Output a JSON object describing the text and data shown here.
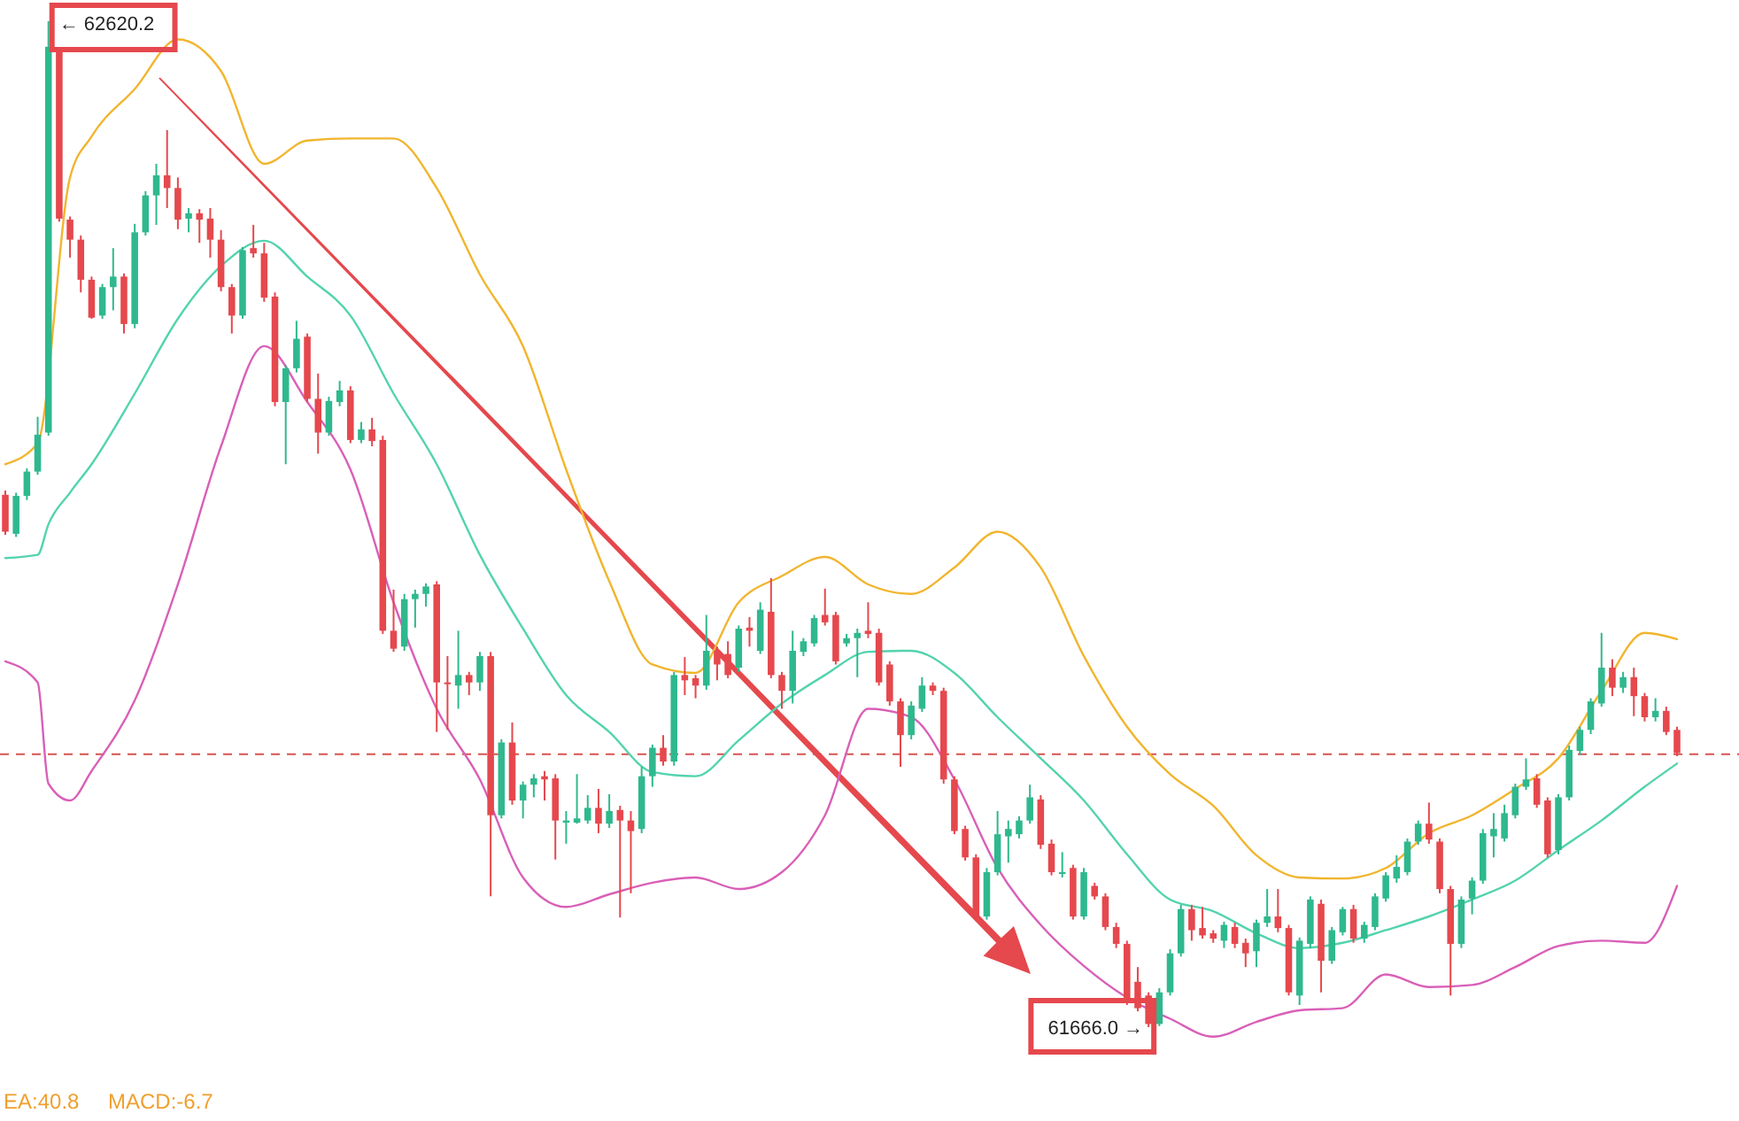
{
  "chart_data": {
    "type": "candlestick",
    "categories": [
      null,
      null,
      null,
      null,
      null,
      null,
      null,
      null,
      null,
      null,
      null,
      null,
      null,
      null,
      null,
      null,
      null,
      null,
      null,
      null,
      null,
      null,
      null,
      null,
      null,
      null,
      null,
      null,
      null,
      null,
      null,
      null,
      null,
      null,
      null,
      null,
      null,
      null,
      null,
      null,
      null,
      null,
      null,
      null,
      null,
      null,
      null,
      null,
      null,
      null,
      null,
      null,
      null,
      null,
      null,
      null,
      null,
      null,
      null,
      null,
      null,
      null,
      null,
      null,
      null,
      null,
      null,
      null,
      null,
      null,
      null,
      null,
      null,
      null,
      null,
      null,
      null,
      null,
      null,
      null,
      null,
      null,
      null,
      null,
      null,
      null,
      null,
      null,
      null,
      null,
      null,
      null,
      null,
      null,
      null,
      null,
      null,
      null,
      null,
      null,
      null,
      null,
      null,
      null,
      null,
      null,
      null,
      null,
      null,
      null,
      null,
      null,
      null,
      null,
      null,
      null,
      null,
      null,
      null,
      null,
      null,
      null,
      null,
      null,
      null,
      null,
      null,
      null,
      null,
      null,
      null,
      null,
      null,
      null,
      null,
      null,
      null,
      null,
      null,
      null,
      null,
      null,
      null,
      null,
      null,
      null,
      null,
      null,
      null,
      null,
      null,
      null,
      null,
      null,
      null,
      null
    ],
    "ohlc": [
      [
        62171,
        62175,
        62133,
        62136
      ],
      [
        62134,
        62173,
        62131,
        62170
      ],
      [
        62170,
        62196,
        62166,
        62193
      ],
      [
        62193,
        62245,
        62190,
        62228
      ],
      [
        62230,
        62620.2,
        62227,
        62596
      ],
      [
        62591,
        62595,
        62430,
        62433
      ],
      [
        62432,
        62435,
        62396,
        62413
      ],
      [
        62413,
        62417,
        62363,
        62375
      ],
      [
        62375,
        62378,
        62338,
        62339
      ],
      [
        62341,
        62371,
        62338,
        62368
      ],
      [
        62368,
        62405,
        62346,
        62378
      ],
      [
        62378,
        62381,
        62324,
        62333
      ],
      [
        62333,
        62428,
        62329,
        62420
      ],
      [
        62420,
        62459,
        62417,
        62455
      ],
      [
        62455,
        62485,
        62427,
        62474
      ],
      [
        62474,
        62517,
        62443,
        62462
      ],
      [
        62462,
        62472,
        62423,
        62432
      ],
      [
        62433,
        62443,
        62420,
        62438
      ],
      [
        62438,
        62442,
        62410,
        62432
      ],
      [
        62433,
        62443,
        62396,
        62413
      ],
      [
        62413,
        62422,
        62364,
        62368
      ],
      [
        62368,
        62371,
        62324,
        62341
      ],
      [
        62341,
        62406,
        62338,
        62403
      ],
      [
        62405,
        62427,
        62396,
        62400
      ],
      [
        62400,
        62410,
        62354,
        62358
      ],
      [
        62359,
        62363,
        62255,
        62259
      ],
      [
        62259,
        62294,
        62200,
        62291
      ],
      [
        62291,
        62336,
        62287,
        62319
      ],
      [
        62321,
        62324,
        62259,
        62262
      ],
      [
        62262,
        62286,
        62210,
        62230
      ],
      [
        62230,
        62264,
        62227,
        62260
      ],
      [
        62259,
        62279,
        62255,
        62270
      ],
      [
        62270,
        62274,
        62220,
        62223
      ],
      [
        62223,
        62240,
        62220,
        62233
      ],
      [
        62233,
        62244,
        62217,
        62222
      ],
      [
        62223,
        62227,
        62039,
        62042
      ],
      [
        62042,
        62081,
        62022,
        62025
      ],
      [
        62027,
        62077,
        62023,
        62072
      ],
      [
        62072,
        62081,
        62045,
        62077
      ],
      [
        62077,
        62087,
        62065,
        62084
      ],
      [
        62086,
        62089,
        61946,
        61993
      ],
      [
        61993,
        62018,
        61948,
        61992
      ],
      [
        61990,
        62042,
        61968,
        62000
      ],
      [
        62000,
        62003,
        61981,
        61993
      ],
      [
        61993,
        62022,
        61985,
        62018
      ],
      [
        62018,
        62022,
        61790,
        61867
      ],
      [
        61867,
        61939,
        61864,
        61936
      ],
      [
        61936,
        61955,
        61877,
        61881
      ],
      [
        61881,
        61899,
        61864,
        61896
      ],
      [
        61896,
        61906,
        61884,
        61902
      ],
      [
        61904,
        61909,
        61881,
        61901
      ],
      [
        61902,
        61906,
        61825,
        61862
      ],
      [
        61860,
        61871,
        61840,
        61862
      ],
      [
        61860,
        61906,
        61859,
        61864
      ],
      [
        61862,
        61886,
        61859,
        61874
      ],
      [
        61874,
        61892,
        61850,
        61859
      ],
      [
        61859,
        61887,
        61855,
        61871
      ],
      [
        61872,
        61876,
        61770,
        61862
      ],
      [
        61862,
        61871,
        61793,
        61852
      ],
      [
        61854,
        61913,
        61850,
        61904
      ],
      [
        61904,
        61934,
        61894,
        61931
      ],
      [
        61931,
        61943,
        61914,
        61918
      ],
      [
        61918,
        62003,
        61914,
        62000
      ],
      [
        62000,
        62017,
        61981,
        61995
      ],
      [
        61997,
        62000,
        61978,
        61990
      ],
      [
        61990,
        62057,
        61986,
        62023
      ],
      [
        62023,
        62027,
        61995,
        62010
      ],
      [
        62020,
        62032,
        61997,
        62000
      ],
      [
        62007,
        62047,
        62003,
        62044
      ],
      [
        62045,
        62055,
        62027,
        62042
      ],
      [
        62023,
        62069,
        62020,
        62062
      ],
      [
        62060,
        62092,
        61997,
        62000
      ],
      [
        62000,
        62003,
        61968,
        61985
      ],
      [
        61985,
        62042,
        61973,
        62023
      ],
      [
        62022,
        62035,
        62018,
        62032
      ],
      [
        62030,
        62057,
        62027,
        62054
      ],
      [
        62057,
        62082,
        62047,
        62050
      ],
      [
        62057,
        62060,
        62010,
        62013
      ],
      [
        62030,
        62039,
        62027,
        62035
      ],
      [
        62035,
        62044,
        61998,
        62040
      ],
      [
        62042,
        62069,
        62035,
        62039
      ],
      [
        62040,
        62044,
        61990,
        61993
      ],
      [
        62010,
        62013,
        61971,
        61975
      ],
      [
        61975,
        61978,
        61913,
        61943
      ],
      [
        61943,
        61975,
        61939,
        61971
      ],
      [
        61968,
        61998,
        61965,
        61990
      ],
      [
        61990,
        61993,
        61981,
        61985
      ],
      [
        61985,
        61988,
        61897,
        61901
      ],
      [
        61901,
        61904,
        61849,
        61852
      ],
      [
        61854,
        61857,
        61824,
        61827
      ],
      [
        61827,
        61830,
        61768,
        61771
      ],
      [
        61771,
        61817,
        61768,
        61813
      ],
      [
        61813,
        61871,
        61810,
        61849
      ],
      [
        61847,
        61862,
        61822,
        61854
      ],
      [
        61849,
        61866,
        61845,
        61862
      ],
      [
        61862,
        61896,
        61859,
        61884
      ],
      [
        61882,
        61886,
        61835,
        61839
      ],
      [
        61840,
        61844,
        61810,
        61813
      ],
      [
        61812,
        61832,
        61808,
        61813
      ],
      [
        61817,
        61820,
        61768,
        61771
      ],
      [
        61771,
        61817,
        61768,
        61813
      ],
      [
        61800,
        61803,
        61787,
        61790
      ],
      [
        61790,
        61793,
        61758,
        61761
      ],
      [
        61761,
        61765,
        61741,
        61745
      ],
      [
        61745,
        61748,
        61687,
        61691
      ],
      [
        61709,
        61723,
        61681,
        61684
      ],
      [
        61696,
        61699,
        61666.0,
        61669
      ],
      [
        61669,
        61703,
        61667,
        61699
      ],
      [
        61699,
        61740,
        61696,
        61736
      ],
      [
        61736,
        61782,
        61733,
        61778
      ],
      [
        61778,
        61782,
        61748,
        61758
      ],
      [
        61760,
        61780,
        61750,
        61753
      ],
      [
        61755,
        61758,
        61746,
        61750
      ],
      [
        61748,
        61766,
        61741,
        61763
      ],
      [
        61761,
        61765,
        61741,
        61745
      ],
      [
        61746,
        61750,
        61723,
        61736
      ],
      [
        61738,
        61768,
        61723,
        61765
      ],
      [
        61765,
        61797,
        61761,
        61771
      ],
      [
        61771,
        61797,
        61756,
        61760
      ],
      [
        61760,
        61763,
        61696,
        61699
      ],
      [
        61696,
        61751,
        61687,
        61748
      ],
      [
        61745,
        61790,
        61741,
        61787
      ],
      [
        61783,
        61787,
        61699,
        61729
      ],
      [
        61729,
        61761,
        61726,
        61758
      ],
      [
        61756,
        61780,
        61753,
        61778
      ],
      [
        61778,
        61782,
        61746,
        61750
      ],
      [
        61750,
        61766,
        61746,
        61763
      ],
      [
        61761,
        61793,
        61758,
        61790
      ],
      [
        61788,
        61813,
        61785,
        61810
      ],
      [
        61807,
        61829,
        61803,
        61818
      ],
      [
        61813,
        61845,
        61810,
        61842
      ],
      [
        61842,
        61862,
        61839,
        61859
      ],
      [
        61859,
        61879,
        61840,
        61844
      ],
      [
        61842,
        61845,
        61793,
        61797
      ],
      [
        61797,
        61800,
        61696,
        61745
      ],
      [
        61745,
        61790,
        61741,
        61787
      ],
      [
        61788,
        61808,
        61773,
        61805
      ],
      [
        61805,
        61854,
        61802,
        61850
      ],
      [
        61847,
        61869,
        61827,
        61854
      ],
      [
        61845,
        61877,
        61842,
        61869
      ],
      [
        61867,
        61897,
        61864,
        61894
      ],
      [
        61894,
        61921,
        61891,
        61901
      ],
      [
        61902,
        61906,
        61874,
        61877
      ],
      [
        61881,
        61884,
        61827,
        61830
      ],
      [
        61834,
        61887,
        61830,
        61884
      ],
      [
        61884,
        61933,
        61881,
        61929
      ],
      [
        61928,
        61951,
        61924,
        61948
      ],
      [
        61948,
        61978,
        61944,
        61975
      ],
      [
        61973,
        62040,
        61970,
        62007
      ],
      [
        62007,
        62015,
        61980,
        61988
      ],
      [
        61988,
        62003,
        61983,
        61998
      ],
      [
        61998,
        62007,
        61961,
        61980
      ],
      [
        61980,
        61983,
        61956,
        61960
      ],
      [
        61960,
        61978,
        61956,
        61966
      ],
      [
        61966,
        61970,
        61943,
        61946
      ],
      [
        61948,
        61951,
        61923,
        61926
      ]
    ],
    "colors": [
      "#e5484d",
      "#2fb88e",
      "#2fb88e",
      "#2fb88e",
      "#2fb88e",
      "#e5484d",
      "#e5484d",
      "#e5484d",
      "#e5484d",
      "#2fb88e",
      "#2fb88e",
      "#e5484d",
      "#2fb88e",
      "#2fb88e",
      "#2fb88e",
      "#e5484d",
      "#e5484d",
      "#2fb88e",
      "#e5484d",
      "#e5484d",
      "#e5484d",
      "#e5484d",
      "#2fb88e",
      "#e5484d",
      "#e5484d",
      "#e5484d",
      "#2fb88e",
      "#2fb88e",
      "#e5484d",
      "#e5484d",
      "#2fb88e",
      "#2fb88e",
      "#e5484d",
      "#2fb88e",
      "#e5484d",
      "#e5484d",
      "#e5484d",
      "#2fb88e",
      "#2fb88e",
      "#2fb88e",
      "#e5484d",
      "#e5484d",
      "#2fb88e",
      "#e5484d",
      "#2fb88e",
      "#e5484d",
      "#2fb88e",
      "#e5484d",
      "#2fb88e",
      "#2fb88e",
      "#e5484d",
      "#e5484d",
      "#2fb88e",
      "#2fb88e",
      "#2fb88e",
      "#e5484d",
      "#2fb88e",
      "#e5484d",
      "#e5484d",
      "#2fb88e",
      "#2fb88e",
      "#e5484d",
      "#2fb88e",
      "#e5484d",
      "#e5484d",
      "#2fb88e",
      "#e5484d",
      "#e5484d",
      "#2fb88e",
      "#e5484d",
      "#2fb88e",
      "#e5484d",
      "#e5484d",
      "#2fb88e",
      "#2fb88e",
      "#2fb88e",
      "#e5484d",
      "#e5484d",
      "#2fb88e",
      "#2fb88e",
      "#e5484d",
      "#e5484d",
      "#e5484d",
      "#e5484d",
      "#2fb88e",
      "#2fb88e",
      "#e5484d",
      "#e5484d",
      "#e5484d",
      "#e5484d",
      "#e5484d",
      "#2fb88e",
      "#2fb88e",
      "#2fb88e",
      "#2fb88e",
      "#2fb88e",
      "#e5484d",
      "#e5484d",
      "#2fb88e",
      "#e5484d",
      "#2fb88e",
      "#e5484d",
      "#e5484d",
      "#e5484d",
      "#e5484d",
      "#e5484d",
      "#e5484d",
      "#2fb88e",
      "#2fb88e",
      "#2fb88e",
      "#e5484d",
      "#e5484d",
      "#e5484d",
      "#2fb88e",
      "#e5484d",
      "#e5484d",
      "#2fb88e",
      "#2fb88e",
      "#e5484d",
      "#e5484d",
      "#2fb88e",
      "#2fb88e",
      "#e5484d",
      "#2fb88e",
      "#2fb88e",
      "#e5484d",
      "#2fb88e",
      "#2fb88e",
      "#2fb88e",
      "#2fb88e",
      "#2fb88e",
      "#2fb88e",
      "#e5484d",
      "#e5484d",
      "#e5484d",
      "#2fb88e",
      "#2fb88e",
      "#2fb88e",
      "#2fb88e",
      "#2fb88e",
      "#2fb88e",
      "#2fb88e",
      "#e5484d",
      "#e5484d",
      "#2fb88e",
      "#2fb88e",
      "#2fb88e",
      "#2fb88e",
      "#2fb88e",
      "#e5484d",
      "#2fb88e",
      "#e5484d",
      "#e5484d",
      "#2fb88e",
      "#e5484d",
      "#e5484d"
    ],
    "series": [
      {
        "type": "line",
        "color": "#f1b52e",
        "values": [
          62200,
          null,
          null,
          62220,
          null,
          null,
          62472,
          null,
          62511,
          null,
          null,
          null,
          62556,
          null,
          null,
          null,
          62603,
          null,
          null,
          null,
          62573,
          null,
          null,
          null,
          62485,
          null,
          null,
          null,
          62507,
          null,
          null,
          null,
          62509,
          null,
          null,
          null,
          62509,
          null,
          null,
          null,
          62462,
          null,
          null,
          null,
          62380,
          null,
          null,
          null,
          62312,
          null,
          null,
          null,
          62195,
          null,
          null,
          null,
          62089,
          null,
          null,
          null,
          62010,
          null,
          null,
          null,
          62002,
          null,
          null,
          null,
          62069,
          null,
          null,
          null,
          62094,
          null,
          null,
          null,
          62112,
          null,
          null,
          null,
          62086,
          null,
          null,
          null,
          62077,
          null,
          null,
          null,
          62102,
          null,
          null,
          null,
          62136,
          null,
          null,
          null,
          62102,
          null,
          null,
          null,
          62018,
          null,
          null,
          null,
          61951,
          null,
          null,
          null,
          61906,
          null,
          null,
          null,
          61876,
          null,
          null,
          null,
          61829,
          null,
          null,
          null,
          61808,
          null,
          null,
          null,
          61807,
          null,
          null,
          null,
          61817,
          null,
          null,
          null,
          61850,
          null,
          null,
          null,
          61867,
          null,
          null,
          null,
          61892,
          null,
          null,
          null,
          61921,
          null,
          null,
          null,
          61985,
          null,
          null,
          null,
          62040,
          null,
          null,
          62034
        ]
      },
      {
        "type": "line",
        "color": "#53d3ae",
        "values": [
          62111,
          null,
          null,
          62114,
          62143,
          null,
          62173,
          null,
          62200,
          null,
          null,
          null,
          62267,
          null,
          null,
          null,
          62338,
          null,
          null,
          null,
          62388,
          null,
          null,
          null,
          62412,
          null,
          null,
          null,
          62378,
          null,
          null,
          null,
          62341,
          null,
          null,
          null,
          62267,
          null,
          null,
          null,
          62200,
          null,
          null,
          null,
          62114,
          null,
          null,
          null,
          62044,
          null,
          null,
          null,
          61981,
          null,
          null,
          null,
          61946,
          null,
          null,
          null,
          61908,
          null,
          null,
          null,
          61904,
          null,
          null,
          null,
          61938,
          null,
          null,
          null,
          61973,
          null,
          null,
          null,
          62000,
          null,
          null,
          null,
          62022,
          null,
          null,
          null,
          62023,
          null,
          null,
          null,
          62002,
          null,
          null,
          null,
          61960,
          null,
          null,
          null,
          61921,
          null,
          null,
          null,
          61881,
          null,
          null,
          null,
          61830,
          null,
          null,
          null,
          61787,
          null,
          null,
          null,
          61776,
          null,
          null,
          null,
          61755,
          null,
          null,
          null,
          61741,
          null,
          null,
          null,
          61746,
          null,
          null,
          null,
          61758,
          null,
          null,
          null,
          61771,
          null,
          null,
          null,
          61787,
          null,
          null,
          null,
          61805,
          null,
          null,
          null,
          61834,
          null,
          null,
          null,
          61862,
          null,
          null,
          null,
          61894,
          null,
          null,
          61916
        ]
      },
      {
        "type": "line",
        "color": "#d95fb8",
        "values": [
          62013,
          null,
          null,
          61993,
          61897,
          null,
          61881,
          null,
          61909,
          null,
          null,
          null,
          61976,
          null,
          null,
          null,
          62086,
          null,
          null,
          null,
          62217,
          null,
          null,
          null,
          62312,
          null,
          null,
          null,
          62259,
          null,
          null,
          null,
          62195,
          null,
          null,
          null,
          62069,
          null,
          null,
          null,
          61968,
          null,
          null,
          null,
          61901,
          null,
          null,
          null,
          61808,
          null,
          null,
          null,
          61780,
          null,
          null,
          null,
          61792,
          null,
          null,
          null,
          61803,
          null,
          null,
          null,
          61808,
          null,
          null,
          null,
          61797,
          null,
          null,
          null,
          61813,
          null,
          null,
          null,
          61867,
          null,
          null,
          null,
          61968,
          null,
          null,
          null,
          61960,
          null,
          null,
          null,
          61901,
          null,
          null,
          null,
          61817,
          null,
          null,
          null,
          61763,
          null,
          null,
          null,
          61724,
          null,
          null,
          null,
          61694,
          null,
          null,
          null,
          61674,
          null,
          null,
          null,
          61657,
          null,
          null,
          null,
          61671,
          null,
          null,
          null,
          61682,
          null,
          null,
          null,
          61684,
          null,
          null,
          null,
          61716,
          null,
          null,
          null,
          61704,
          null,
          null,
          null,
          61706,
          null,
          null,
          null,
          61723,
          null,
          null,
          null,
          61743,
          null,
          null,
          null,
          61748,
          null,
          null,
          null,
          61746,
          null,
          null,
          61800
        ]
      }
    ],
    "ref_lines": [
      {
        "axis": "y",
        "value": 61925,
        "color": "#d9534f",
        "line_style": "dashed"
      }
    ],
    "annotations": [
      "← 62620.2",
      "61666.0 →",
      "EA:40.8",
      "MACD:-6.7"
    ]
  }
}
